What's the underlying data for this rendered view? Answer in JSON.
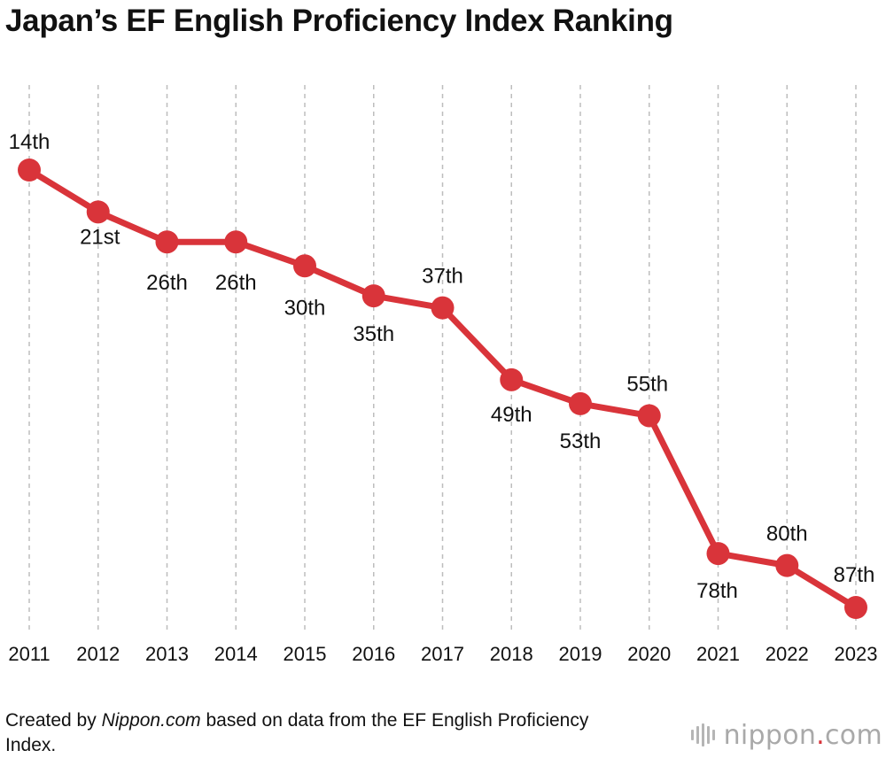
{
  "title": "Japan’s EF English Proficiency Index Ranking",
  "chart_data": {
    "type": "line",
    "title": "Japan’s EF English Proficiency Index Ranking",
    "xlabel": "",
    "ylabel": "",
    "y_inverted": true,
    "grid": "vertical dashed",
    "x": [
      "2011",
      "2012",
      "2013",
      "2014",
      "2015",
      "2016",
      "2017",
      "2018",
      "2019",
      "2020",
      "2021",
      "2022",
      "2023"
    ],
    "series": [
      {
        "color": "#d9343a",
        "values": [
          14,
          21,
          26,
          26,
          30,
          35,
          37,
          49,
          53,
          55,
          78,
          80,
          87
        ],
        "labels": [
          "14th",
          "21st",
          "26th",
          "26th",
          "30th",
          "35th",
          "37th",
          "49th",
          "53th",
          "55th",
          "78th",
          "80th",
          "87th"
        ]
      }
    ]
  },
  "source": {
    "prefix": "Created by ",
    "brand": "Nippon.com",
    "suffix": " based on data from the EF English Proficiency Index."
  },
  "logo": {
    "name": "nippon",
    "dot": ".",
    "suffix": "com"
  },
  "colors": {
    "line": "#d9343a",
    "grid": "#bdbdbd",
    "text": "#111111",
    "logo": "#a9a9a9"
  }
}
